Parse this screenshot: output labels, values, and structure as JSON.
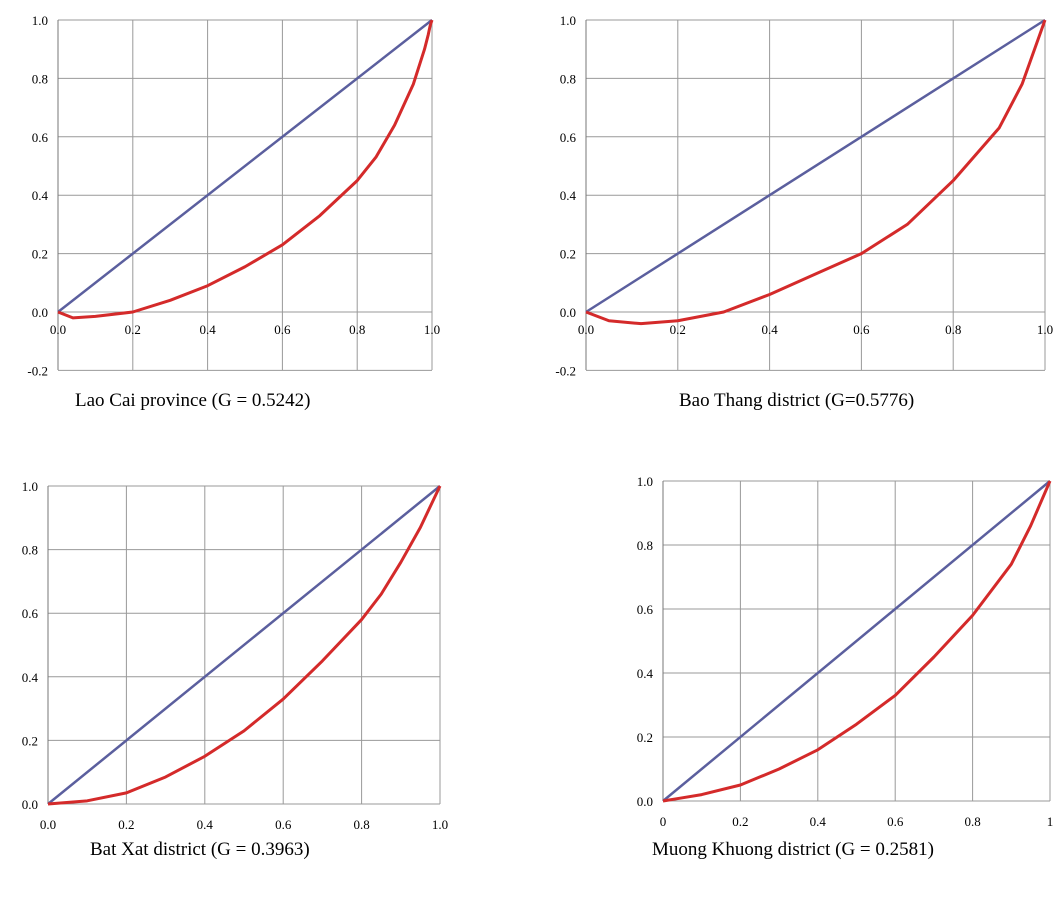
{
  "chart_data": [
    {
      "type": "line",
      "caption": "Lao Cai province (G = 0.5242)",
      "xlim": [
        0,
        1
      ],
      "ylim": [
        -0.2,
        1
      ],
      "xticks": [
        "0.0",
        "0.2",
        "0.4",
        "0.6",
        "0.8",
        "1.0"
      ],
      "yticks": [
        "-0.2",
        "0.0",
        "0.2",
        "0.4",
        "0.6",
        "0.8",
        "1.0"
      ],
      "grid": true,
      "series": [
        {
          "x": [
            0,
            1
          ],
          "y": [
            0,
            1
          ],
          "color": "#5b5f9e"
        },
        {
          "x": [
            0,
            0.04,
            0.1,
            0.2,
            0.3,
            0.4,
            0.5,
            0.6,
            0.7,
            0.8,
            0.85,
            0.9,
            0.95,
            0.98,
            0.99,
            0.995,
            1.0
          ],
          "y": [
            0,
            -0.02,
            -0.015,
            0.0,
            0.04,
            0.09,
            0.155,
            0.23,
            0.33,
            0.45,
            0.53,
            0.64,
            0.78,
            0.9,
            0.95,
            0.98,
            1.0
          ],
          "color": "#d42a2a"
        }
      ]
    },
    {
      "type": "line",
      "caption": "Bao Thang district (G=0.5776)",
      "xlim": [
        0,
        1
      ],
      "ylim": [
        -0.2,
        1
      ],
      "xticks": [
        "0.0",
        "0.2",
        "0.4",
        "0.6",
        "0.8",
        "1.0"
      ],
      "yticks": [
        "-0.2",
        "0.0",
        "0.2",
        "0.4",
        "0.6",
        "0.8",
        "1.0"
      ],
      "grid": true,
      "series": [
        {
          "x": [
            0,
            1
          ],
          "y": [
            0,
            1
          ],
          "color": "#5b5f9e"
        },
        {
          "x": [
            0,
            0.05,
            0.12,
            0.2,
            0.3,
            0.4,
            0.5,
            0.6,
            0.7,
            0.8,
            0.9,
            0.95,
            1.0
          ],
          "y": [
            0,
            -0.03,
            -0.04,
            -0.03,
            0.0,
            0.06,
            0.13,
            0.2,
            0.3,
            0.45,
            0.63,
            0.78,
            1.0
          ],
          "color": "#d42a2a"
        }
      ]
    },
    {
      "type": "line",
      "caption": "Bat Xat district (G = 0.3963)",
      "xlim": [
        0,
        1
      ],
      "ylim": [
        0,
        1
      ],
      "xticks": [
        "0.0",
        "0.2",
        "0.4",
        "0.6",
        "0.8",
        "1.0"
      ],
      "yticks": [
        "0.0",
        "0.2",
        "0.4",
        "0.6",
        "0.8",
        "1.0"
      ],
      "grid": true,
      "series": [
        {
          "x": [
            0,
            1
          ],
          "y": [
            0,
            1
          ],
          "color": "#5b5f9e"
        },
        {
          "x": [
            0,
            0.1,
            0.2,
            0.3,
            0.4,
            0.5,
            0.6,
            0.7,
            0.8,
            0.85,
            0.9,
            0.95,
            1.0
          ],
          "y": [
            0,
            0.01,
            0.035,
            0.085,
            0.15,
            0.23,
            0.33,
            0.45,
            0.58,
            0.66,
            0.76,
            0.87,
            1.0
          ],
          "color": "#d42a2a"
        }
      ]
    },
    {
      "type": "line",
      "caption": "Muong Khuong district (G = 0.2581)",
      "xlim": [
        0,
        1
      ],
      "ylim": [
        0,
        1
      ],
      "xticks": [
        "0",
        "0.2",
        "0.4",
        "0.6",
        "0.8",
        "1"
      ],
      "yticks": [
        "0.0",
        "0.2",
        "0.4",
        "0.6",
        "0.8",
        "1.0"
      ],
      "grid": true,
      "series": [
        {
          "x": [
            0,
            1
          ],
          "y": [
            0,
            1
          ],
          "color": "#5b5f9e"
        },
        {
          "x": [
            0,
            0.05,
            0.1,
            0.2,
            0.3,
            0.4,
            0.5,
            0.6,
            0.7,
            0.8,
            0.9,
            0.95,
            1.0
          ],
          "y": [
            0,
            0.01,
            0.02,
            0.05,
            0.1,
            0.16,
            0.24,
            0.33,
            0.45,
            0.58,
            0.74,
            0.86,
            1.0
          ],
          "color": "#d42a2a"
        }
      ]
    }
  ]
}
